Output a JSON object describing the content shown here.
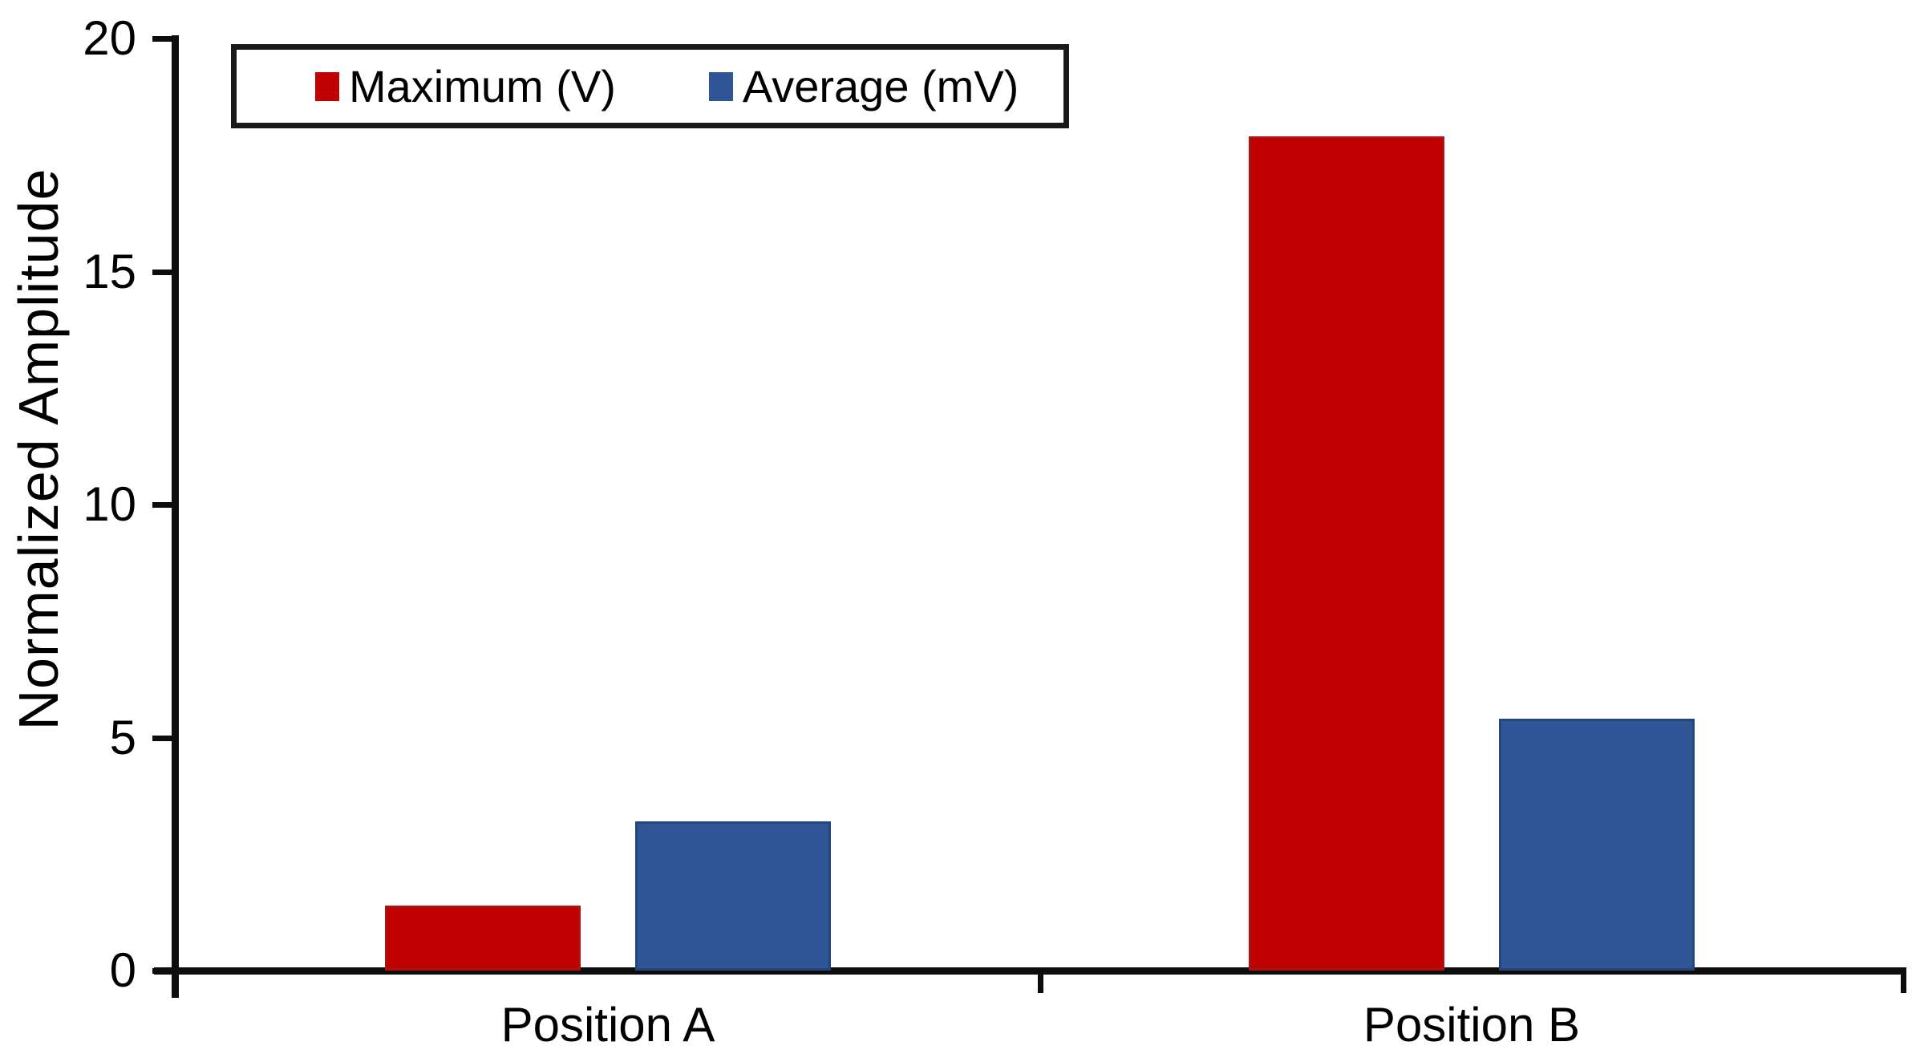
{
  "chart_data": {
    "type": "bar",
    "title": "",
    "categories": [
      "Position A",
      "Position B"
    ],
    "series": [
      {
        "name": "Maximum (V)",
        "color": "#C00000",
        "border_color": "#AD1111",
        "values": [
          1.4,
          17.9
        ]
      },
      {
        "name": "Average (mV)",
        "color": "#2F5597",
        "border_color": "#24457E",
        "values": [
          3.2,
          5.4
        ]
      }
    ],
    "xlabel": "",
    "ylabel": "Normalized Amplitude",
    "ylim": [
      0,
      20
    ],
    "yticks": [
      0,
      5,
      10,
      15,
      20
    ],
    "grid": false,
    "legend_position": "top-left"
  },
  "colors": {
    "axis": "#0d0d0d",
    "text": "#000000",
    "background": "#ffffff"
  }
}
